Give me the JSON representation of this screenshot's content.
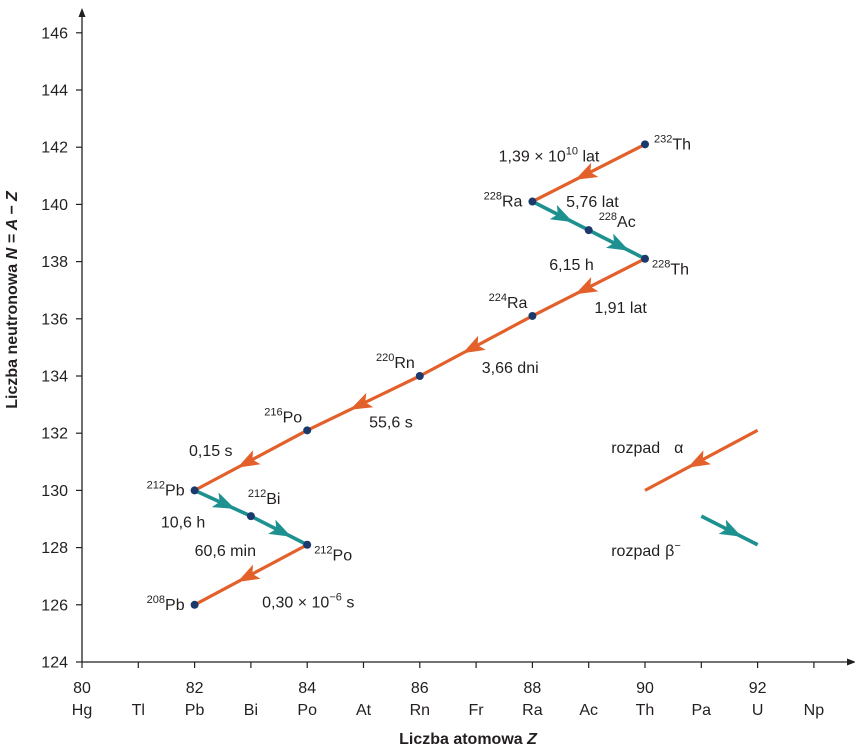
{
  "chart_data": {
    "type": "line",
    "xlabel": {
      "text": "Liczba atomowa ",
      "var": "Z"
    },
    "ylabel": {
      "text": "Liczba neutronowa ",
      "var": "N = A − Z"
    },
    "xlim": [
      80,
      93
    ],
    "ylim": [
      124,
      146
    ],
    "x_ticks": [
      80,
      81,
      82,
      83,
      84,
      85,
      86,
      87,
      88,
      89,
      90,
      91,
      92,
      93
    ],
    "x_tick_numbers": [
      "80",
      "",
      "82",
      "",
      "84",
      "",
      "86",
      "",
      "88",
      "",
      "90",
      "",
      "92",
      ""
    ],
    "x_tick_elements": [
      "Hg",
      "Tl",
      "Pb",
      "Bi",
      "Po",
      "At",
      "Rn",
      "Fr",
      "Ra",
      "Ac",
      "Th",
      "Pa",
      "U",
      "Np"
    ],
    "y_ticks": [
      124,
      126,
      128,
      130,
      132,
      134,
      136,
      138,
      140,
      142,
      144,
      146
    ],
    "y_tick_labels": [
      "124",
      "126",
      "128",
      "130",
      "132",
      "134",
      "136",
      "138",
      "140",
      "142",
      "144",
      "146"
    ],
    "colors": {
      "alpha": "#e3602b",
      "beta": "#1d9090",
      "point": "#1b3a6b",
      "axis": "#231f20"
    },
    "nuclides": [
      {
        "mass": "232",
        "symbol": "Th",
        "z": 90,
        "n": 142.1,
        "anchor": "right"
      },
      {
        "mass": "228",
        "symbol": "Ra",
        "z": 88,
        "n": 140.1,
        "anchor": "left"
      },
      {
        "mass": "228",
        "symbol": "Ac",
        "z": 89,
        "n": 139.1,
        "anchor": "above-right"
      },
      {
        "mass": "228",
        "symbol": "Th",
        "z": 90,
        "n": 138.1,
        "anchor": "right-below"
      },
      {
        "mass": "224",
        "symbol": "Ra",
        "z": 88,
        "n": 136.1,
        "anchor": "above-left"
      },
      {
        "mass": "220",
        "symbol": "Rn",
        "z": 86,
        "n": 134.0,
        "anchor": "above-left"
      },
      {
        "mass": "216",
        "symbol": "Po",
        "z": 84,
        "n": 132.1,
        "anchor": "above-left"
      },
      {
        "mass": "212",
        "symbol": "Pb",
        "z": 82,
        "n": 130.0,
        "anchor": "left"
      },
      {
        "mass": "212",
        "symbol": "Bi",
        "z": 83,
        "n": 129.1,
        "anchor": "above"
      },
      {
        "mass": "212",
        "symbol": "Po",
        "z": 84,
        "n": 128.1,
        "anchor": "right-below"
      },
      {
        "mass": "208",
        "symbol": "Pb",
        "z": 82,
        "n": 126.0,
        "anchor": "left"
      }
    ],
    "decays": [
      {
        "type": "alpha",
        "from": [
          90,
          142.1
        ],
        "to": [
          88,
          140.1
        ],
        "half_life": "1,39 × 10",
        "half_life_sup": "10",
        "half_life_unit": " lat",
        "label_at": [
          87.4,
          141.7
        ]
      },
      {
        "type": "beta",
        "from": [
          88,
          140.1
        ],
        "to": [
          89,
          139.1
        ],
        "half_life": "5,76 lat",
        "half_life_sup": "",
        "half_life_unit": "",
        "label_at": [
          88.6,
          140.1
        ]
      },
      {
        "type": "beta",
        "from": [
          89,
          139.1
        ],
        "to": [
          90,
          138.1
        ],
        "half_life": "6,15 h",
        "half_life_sup": "",
        "half_life_unit": "",
        "label_at": [
          88.3,
          137.9
        ]
      },
      {
        "type": "alpha",
        "from": [
          90,
          138.1
        ],
        "to": [
          88,
          136.1
        ],
        "half_life": "1,91 lat",
        "half_life_sup": "",
        "half_life_unit": "",
        "label_at": [
          89.1,
          136.4
        ]
      },
      {
        "type": "alpha",
        "from": [
          88,
          136.1
        ],
        "to": [
          86,
          134.0
        ],
        "half_life": "3,66 dni",
        "half_life_sup": "",
        "half_life_unit": "",
        "label_at": [
          87.1,
          134.3
        ]
      },
      {
        "type": "alpha",
        "from": [
          86,
          134.0
        ],
        "to": [
          84,
          132.1
        ],
        "half_life": "55,6 s",
        "half_life_sup": "",
        "half_life_unit": "",
        "label_at": [
          85.1,
          132.4
        ]
      },
      {
        "type": "alpha",
        "from": [
          84,
          132.1
        ],
        "to": [
          82,
          130.0
        ],
        "half_life": "0,15 s",
        "half_life_sup": "",
        "half_life_unit": "",
        "label_at": [
          81.9,
          131.4
        ]
      },
      {
        "type": "beta",
        "from": [
          82,
          130.0
        ],
        "to": [
          83,
          129.1
        ],
        "half_life": "10,6 h",
        "half_life_sup": "",
        "half_life_unit": "",
        "label_at": [
          81.4,
          128.9
        ]
      },
      {
        "type": "beta",
        "from": [
          83,
          129.1
        ],
        "to": [
          84,
          128.1
        ],
        "half_life": "60,6 min",
        "half_life_sup": "",
        "half_life_unit": "",
        "label_at": [
          82.0,
          127.9
        ]
      },
      {
        "type": "alpha",
        "from": [
          84,
          128.1
        ],
        "to": [
          82,
          126.0
        ],
        "half_life": "0,30 × 10",
        "half_life_sup": "−6",
        "half_life_unit": " s",
        "label_at": [
          83.2,
          126.1
        ]
      }
    ],
    "legend": [
      {
        "type": "alpha",
        "label": "rozpad",
        "symbol": "α",
        "from": [
          92,
          132.1
        ],
        "to": [
          90,
          130.0
        ],
        "label_at": [
          89.4,
          131.5
        ]
      },
      {
        "type": "beta",
        "label": "rozpad",
        "symbol": "β",
        "symbol_sup": "−",
        "from": [
          91,
          129.1
        ],
        "to": [
          92,
          128.1
        ],
        "label_at": [
          89.4,
          127.9
        ]
      }
    ]
  }
}
